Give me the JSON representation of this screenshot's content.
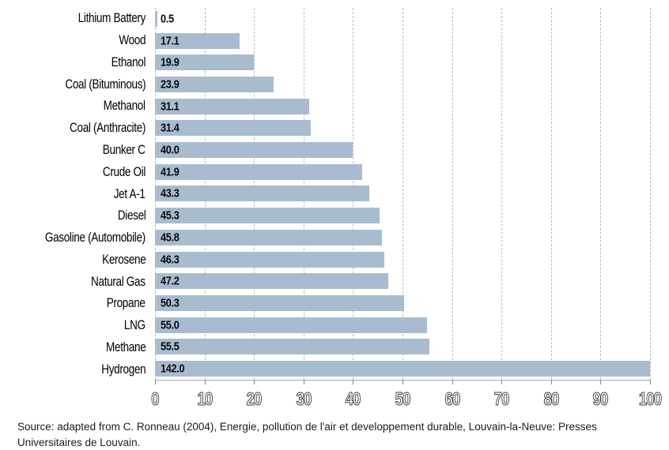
{
  "chart_data": {
    "type": "bar",
    "orientation": "horizontal",
    "title": "",
    "xlabel": "",
    "ylabel": "",
    "categories": [
      "Lithium Battery",
      "Wood",
      "Ethanol",
      "Coal (Bituminous)",
      "Methanol",
      "Coal (Anthracite)",
      "Bunker C",
      "Crude Oil",
      "Jet A-1",
      "Diesel",
      "Gasoline (Automobile)",
      "Kerosene",
      "Natural Gas",
      "Propane",
      "LNG",
      "Methane",
      "Hydrogen"
    ],
    "values": [
      0.5,
      17.1,
      19.9,
      23.9,
      31.1,
      31.4,
      40.0,
      41.9,
      43.3,
      45.3,
      45.8,
      46.3,
      47.2,
      50.3,
      55.0,
      55.5,
      142.0
    ],
    "value_labels": [
      "0.5",
      "17.1",
      "19.9",
      "23.9",
      "31.1",
      "31.4",
      "40.0",
      "41.9",
      "43.3",
      "45.3",
      "45.8",
      "46.3",
      "47.2",
      "50.3",
      "55.0",
      "55.5",
      "142.0"
    ],
    "xlim": [
      0,
      100
    ],
    "xticks": [
      0,
      10,
      20,
      30,
      40,
      50,
      60,
      70,
      80,
      90,
      100
    ],
    "grid": "dashed-vertical",
    "legend": "none",
    "bar_color": "#a9bccf",
    "bar_display_max": 100
  },
  "source": {
    "text": "Source: adapted from C. Ronneau (2004), Energie, pollution de l'air et developpement durable, Louvain-la-Neuve: Presses Universitaires de Louvain."
  }
}
